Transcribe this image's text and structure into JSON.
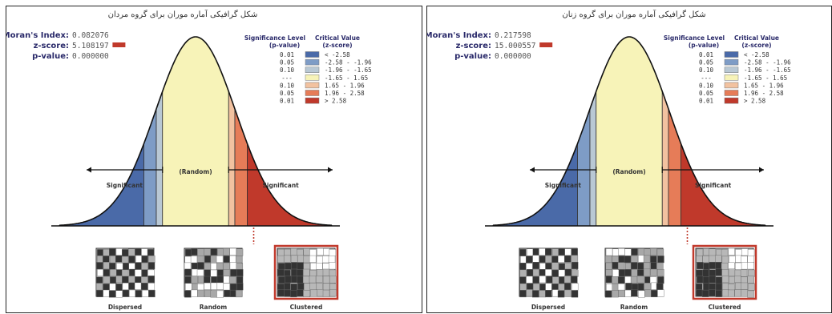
{
  "panels": [
    {
      "title": "شکل گرافیکی آماره موران برای گروه مردان",
      "morans_label": "Moran's Index:",
      "morans_value": "0.082076",
      "zscore_label": "z-score:",
      "zscore_value": "5.108197",
      "pvalue_label": "p-value:",
      "pvalue_value": "0.000000",
      "legend_header_left": [
        "Significance Level",
        "(p-value)"
      ],
      "legend_header_right": [
        "Critical Value",
        "(z-score)"
      ],
      "legend_rows": [
        {
          "p": "0.01",
          "color": "#4a6aa8",
          "z": "< -2.58"
        },
        {
          "p": "0.05",
          "color": "#7e9cc6",
          "z": "-2.58 - -1.96"
        },
        {
          "p": "0.10",
          "color": "#b9c8d4",
          "z": "-1.96 - -1.65"
        },
        {
          "p": "---",
          "color": "#f7f3b8",
          "z": "-1.65 - 1.65"
        },
        {
          "p": "0.10",
          "color": "#f2c2a0",
          "z": "1.65 - 1.96"
        },
        {
          "p": "0.05",
          "color": "#e67c58",
          "z": "1.96 - 2.58"
        },
        {
          "p": "0.01",
          "color": "#c0392b",
          "z": "> 2.58"
        }
      ],
      "random_label": "(Random)",
      "significant_left": "Significant",
      "significant_right": "Significant",
      "pattern_labels": [
        "Dispersed",
        "Random",
        "Clustered"
      ]
    },
    {
      "title": "شکل گرافیکی آماره موران برای گروه زنان",
      "morans_label": "Moran's Index:",
      "morans_value": "0.217598",
      "zscore_label": "z-score:",
      "zscore_value": "15.000557",
      "pvalue_label": "p-value:",
      "pvalue_value": "0.000000",
      "legend_header_left": [
        "Significance Level",
        "(p-value)"
      ],
      "legend_header_right": [
        "Critical Value",
        "(z-score)"
      ],
      "legend_rows": [
        {
          "p": "0.01",
          "color": "#4a6aa8",
          "z": "< -2.58"
        },
        {
          "p": "0.05",
          "color": "#7e9cc6",
          "z": "-2.58 - -1.96"
        },
        {
          "p": "0.10",
          "color": "#b9c8d4",
          "z": "-1.96 - -1.65"
        },
        {
          "p": "---",
          "color": "#f7f3b8",
          "z": "-1.65 - 1.65"
        },
        {
          "p": "0.10",
          "color": "#f2c2a0",
          "z": "1.65 - 1.96"
        },
        {
          "p": "0.05",
          "color": "#e67c58",
          "z": "1.96 - 2.58"
        },
        {
          "p": "0.01",
          "color": "#c0392b",
          "z": "> 2.58"
        }
      ],
      "random_label": "(Random)",
      "significant_left": "Significant",
      "significant_right": "Significant",
      "pattern_labels": [
        "Dispersed",
        "Random",
        "Clustered"
      ]
    }
  ],
  "colors": {
    "neg_01": "#4a6aa8",
    "neg_05": "#7e9cc6",
    "neg_10": "#b9c8d4",
    "center": "#f7f3b8",
    "pos_10": "#f2c2a0",
    "pos_05": "#e67c58",
    "pos_01": "#c0392b",
    "zscore_box": "#c0392b",
    "clustered_border": "#c0392b"
  }
}
